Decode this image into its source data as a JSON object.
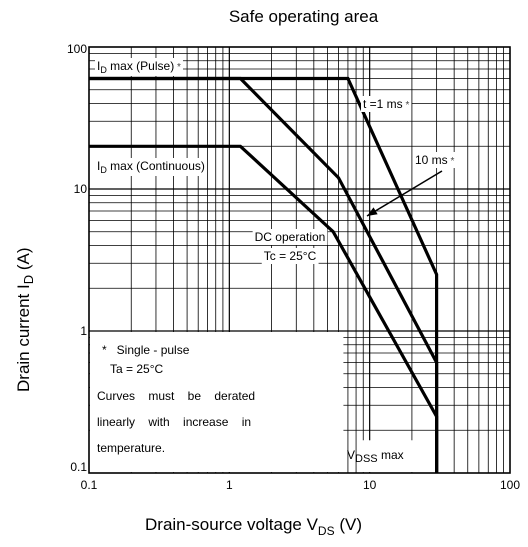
{
  "chart_data": {
    "type": "line",
    "title": "Safe operating area",
    "xlabel": "Drain-source voltage",
    "xlabel_symbol": "V",
    "xlabel_sub": "DS",
    "xlabel_unit": "(V)",
    "ylabel": "Drain current",
    "ylabel_symbol": "I",
    "ylabel_sub": "D",
    "ylabel_unit": "(A)",
    "x_scale": "log",
    "y_scale": "log",
    "xlim": [
      0.1,
      100
    ],
    "ylim": [
      0.1,
      100
    ],
    "x_ticks": [
      "0.1",
      "1",
      "10",
      "100"
    ],
    "y_ticks": [
      "0.1",
      "1",
      "10",
      "100"
    ],
    "grid": true,
    "series": [
      {
        "name": "t =1 ms *",
        "points": [
          [
            0.1,
            60
          ],
          [
            7,
            60
          ],
          [
            30,
            2.5
          ],
          [
            30,
            0.1
          ]
        ]
      },
      {
        "name": "10 ms *",
        "points": [
          [
            0.1,
            60
          ],
          [
            1.2,
            60
          ],
          [
            6,
            12
          ],
          [
            30,
            0.6
          ],
          [
            30,
            0.1
          ]
        ]
      },
      {
        "name": "DC operation Tc = 25°C",
        "points": [
          [
            0.1,
            20
          ],
          [
            1.2,
            20
          ],
          [
            5.5,
            5
          ],
          [
            30,
            0.25
          ],
          [
            30,
            0.1
          ]
        ]
      }
    ],
    "annotations": {
      "id_pulse": {
        "main": "I",
        "sub": "D",
        "rest": " max (Pulse)",
        "star": " *"
      },
      "id_cont": {
        "main": "I",
        "sub": "D",
        "rest": " max (Continuous)"
      },
      "t1ms": {
        "text": "t =1 ms",
        "star": " *"
      },
      "t10ms": {
        "text": "10 ms",
        "star": " *"
      },
      "dc_line1": "DC operation",
      "dc_line2": "Tc = 25°C",
      "vdss": {
        "main": "V",
        "sub": "DSS",
        "rest": " max"
      },
      "note": [
        "*   Single - pulse",
        "Ta = 25°C",
        "Curves    must    be    derated",
        "linearly    with    increase    in",
        "temperature."
      ]
    }
  }
}
